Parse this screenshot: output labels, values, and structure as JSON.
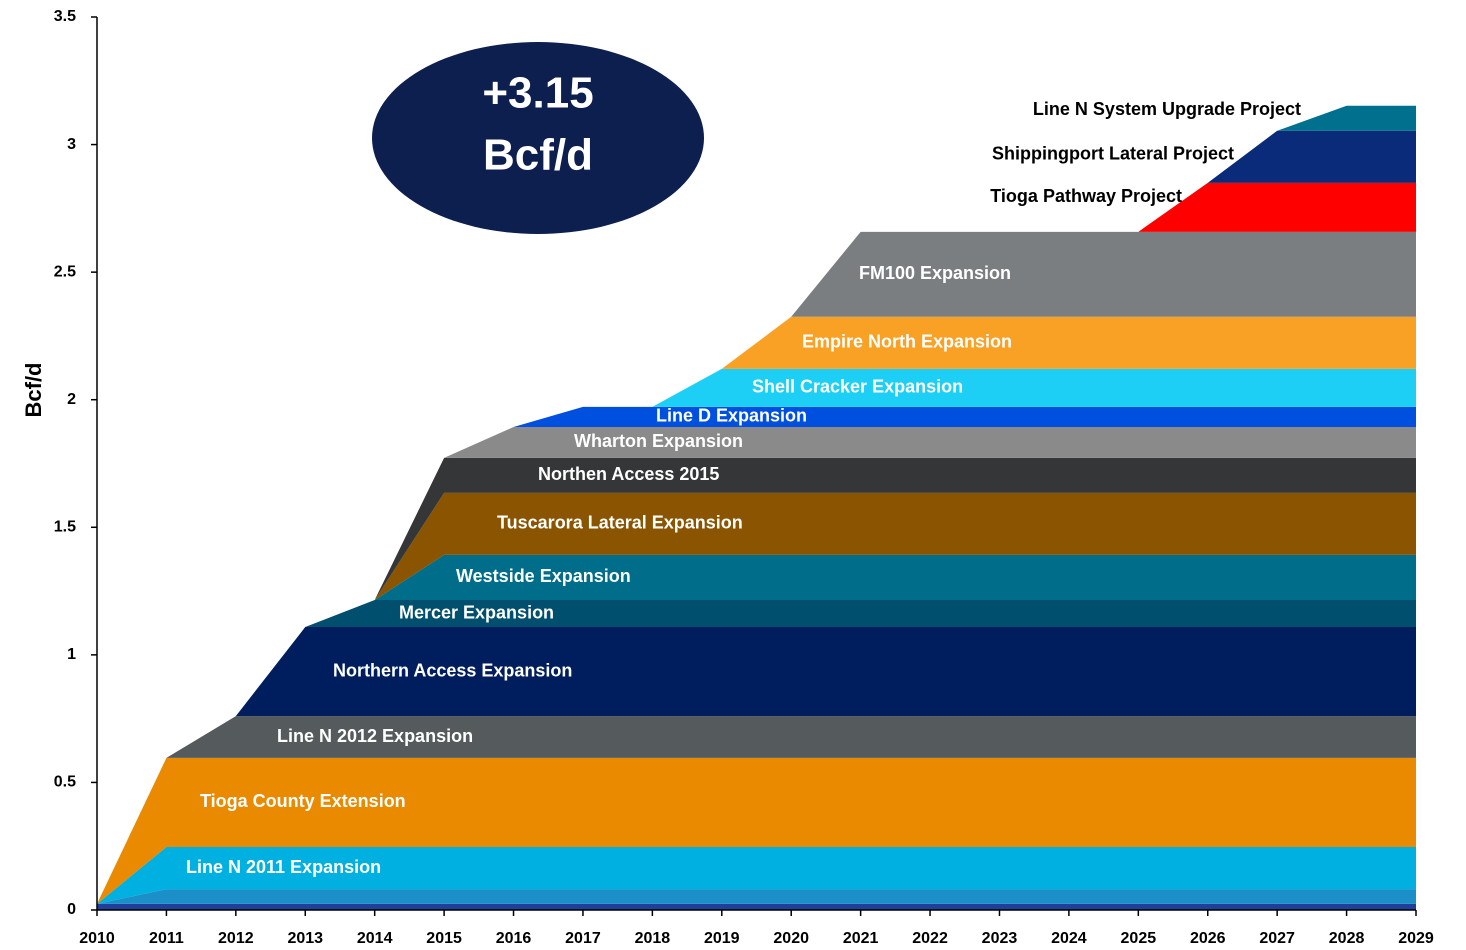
{
  "chart_data": {
    "type": "stacked_area",
    "ylabel": "Bcf/d",
    "annotation": [
      "+3.15",
      "Bcf/d"
    ],
    "x": [
      2010,
      2011,
      2012,
      2013,
      2014,
      2015,
      2016,
      2017,
      2018,
      2019,
      2020,
      2021,
      2022,
      2023,
      2024,
      2025,
      2026,
      2027,
      2028,
      2029
    ],
    "xlim": [
      2010,
      2029
    ],
    "ylim": [
      0,
      3.5
    ],
    "yticks": [
      0,
      0.5,
      1,
      1.5,
      2,
      2.5,
      3,
      3.5
    ],
    "series": [
      {
        "color": "#1f3f9a",
        "values": [
          0.024,
          0.024,
          0.024,
          0.024,
          0.024,
          0.024,
          0.024,
          0.024,
          0.024,
          0.024,
          0.024,
          0.024,
          0.024,
          0.024,
          0.024,
          0.024,
          0.024,
          0.024,
          0.024,
          0.024
        ]
      },
      {
        "color": "#1a8fc8",
        "values": [
          0,
          0.058,
          0.058,
          0.058,
          0.058,
          0.058,
          0.058,
          0.058,
          0.058,
          0.058,
          0.058,
          0.058,
          0.058,
          0.058,
          0.058,
          0.058,
          0.058,
          0.058,
          0.058,
          0.058
        ]
      },
      {
        "name": "Line N 2011 Expansion",
        "color": "#00b0e0",
        "values": [
          0,
          0.165,
          0.165,
          0.165,
          0.165,
          0.165,
          0.165,
          0.165,
          0.165,
          0.165,
          0.165,
          0.165,
          0.165,
          0.165,
          0.165,
          0.165,
          0.165,
          0.165,
          0.165,
          0.165
        ]
      },
      {
        "name": "Tioga County Extension",
        "color": "#ea8a00",
        "values": [
          0,
          0.349,
          0.349,
          0.349,
          0.349,
          0.349,
          0.349,
          0.349,
          0.349,
          0.349,
          0.349,
          0.349,
          0.349,
          0.349,
          0.349,
          0.349,
          0.349,
          0.349,
          0.349,
          0.349
        ]
      },
      {
        "name": "Line N 2012 Expansion",
        "color": "#555a5c",
        "values": [
          0,
          0,
          0.164,
          0.164,
          0.164,
          0.164,
          0.164,
          0.164,
          0.164,
          0.164,
          0.164,
          0.164,
          0.164,
          0.164,
          0.164,
          0.164,
          0.164,
          0.164,
          0.164,
          0.164
        ]
      },
      {
        "name": "Northern Access Expansion",
        "color": "#001e5e",
        "values": [
          0,
          0,
          0,
          0.349,
          0.349,
          0.349,
          0.349,
          0.349,
          0.349,
          0.349,
          0.349,
          0.349,
          0.349,
          0.349,
          0.349,
          0.349,
          0.349,
          0.349,
          0.349,
          0.349
        ]
      },
      {
        "name": "Mercer Expansion",
        "color": "#004f6e",
        "values": [
          0,
          0,
          0,
          0,
          0.106,
          0.106,
          0.106,
          0.106,
          0.106,
          0.106,
          0.106,
          0.106,
          0.106,
          0.106,
          0.106,
          0.106,
          0.106,
          0.106,
          0.106,
          0.106
        ]
      },
      {
        "name": "Westside Expansion",
        "color": "#006e8a",
        "values": [
          0,
          0,
          0,
          0,
          0,
          0.177,
          0.177,
          0.177,
          0.177,
          0.177,
          0.177,
          0.177,
          0.177,
          0.177,
          0.177,
          0.177,
          0.177,
          0.177,
          0.177,
          0.177
        ]
      },
      {
        "name": "Tuscarora Lateral Expansion",
        "color": "#8b5400",
        "values": [
          0,
          0,
          0,
          0,
          0,
          0.243,
          0.243,
          0.243,
          0.243,
          0.243,
          0.243,
          0.243,
          0.243,
          0.243,
          0.243,
          0.243,
          0.243,
          0.243,
          0.243,
          0.243
        ]
      },
      {
        "name": "Northen Access 2015",
        "color": "#343638",
        "values": [
          0,
          0,
          0,
          0,
          0,
          0.137,
          0.137,
          0.137,
          0.137,
          0.137,
          0.137,
          0.137,
          0.137,
          0.137,
          0.137,
          0.137,
          0.137,
          0.137,
          0.137,
          0.137
        ]
      },
      {
        "name": "Wharton Expansion",
        "color": "#8a8a8a",
        "values": [
          0,
          0,
          0,
          0,
          0,
          0,
          0.121,
          0.121,
          0.121,
          0.121,
          0.121,
          0.121,
          0.121,
          0.121,
          0.121,
          0.121,
          0.121,
          0.121,
          0.121,
          0.121
        ]
      },
      {
        "name": "Line D Expansion",
        "color": "#0050e0",
        "values": [
          0,
          0,
          0,
          0,
          0,
          0,
          0,
          0.079,
          0.079,
          0.079,
          0.079,
          0.079,
          0.079,
          0.079,
          0.079,
          0.079,
          0.079,
          0.079,
          0.079,
          0.079
        ]
      },
      {
        "name": "Shell Cracker Expansion",
        "color": "#1ecff5",
        "values": [
          0,
          0,
          0,
          0,
          0,
          0,
          0,
          0,
          0,
          0.149,
          0.149,
          0.149,
          0.149,
          0.149,
          0.149,
          0.149,
          0.149,
          0.149,
          0.149,
          0.149
        ]
      },
      {
        "name": "Empire North Expansion",
        "color": "#f9a125",
        "values": [
          0,
          0,
          0,
          0,
          0,
          0,
          0,
          0,
          0,
          0,
          0.204,
          0.204,
          0.204,
          0.204,
          0.204,
          0.204,
          0.204,
          0.204,
          0.204,
          0.204
        ]
      },
      {
        "name": "FM100 Expansion",
        "color": "#7a7e80",
        "values": [
          0,
          0,
          0,
          0,
          0,
          0,
          0,
          0,
          0,
          0,
          0,
          0.333,
          0.333,
          0.333,
          0.333,
          0.333,
          0.333,
          0.333,
          0.333,
          0.333
        ]
      },
      {
        "name": "Tioga Pathway Project",
        "color": "#ff0000",
        "values": [
          0,
          0,
          0,
          0,
          0,
          0,
          0,
          0,
          0,
          0,
          0,
          0,
          0,
          0,
          0,
          0,
          0.192,
          0.192,
          0.192,
          0.192
        ]
      },
      {
        "name": "Shippingport Lateral Project",
        "color": "#0a2a7a",
        "values": [
          0,
          0,
          0,
          0,
          0,
          0,
          0,
          0,
          0,
          0,
          0,
          0,
          0,
          0,
          0,
          0,
          0,
          0.204,
          0.204,
          0.204
        ]
      },
      {
        "name": "Line N System Upgrade Project",
        "color": "#00708f",
        "values": [
          0,
          0,
          0,
          0,
          0,
          0,
          0,
          0,
          0,
          0,
          0,
          0,
          0,
          0,
          0,
          0,
          0,
          0,
          0.098,
          0.098
        ]
      }
    ]
  }
}
